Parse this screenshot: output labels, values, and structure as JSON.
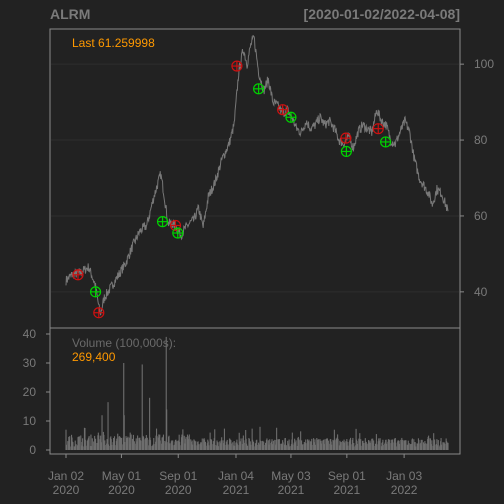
{
  "header": {
    "symbol": "ALRM",
    "date_range": "[2020-01-02/2022-04-08]"
  },
  "price_panel": {
    "last_label": "Last 61.259998"
  },
  "volume_panel": {
    "label": "Volume (100,000s):",
    "value_label": "269,400"
  },
  "colors": {
    "background": "#222222",
    "frame": "#8a8a8a",
    "grid": "#2e2e2e",
    "price_line": "#787878",
    "volume_bar": "#6e6e6e",
    "accent": "#ff9900",
    "buy_marker": "#00d200",
    "sell_marker": "#cc1111"
  },
  "chart_data": [
    {
      "type": "line",
      "title": "ALRM",
      "subtitle": "[2020-01-02/2022-04-08]",
      "ylim": [
        31,
        109
      ],
      "y_ticks": [
        40,
        60,
        80,
        100
      ],
      "x_tick_labels": [
        {
          "date": "2020-01-02",
          "label": [
            "Jan 02",
            "2020"
          ]
        },
        {
          "date": "2020-05-01",
          "label": [
            "May 01",
            "2020"
          ]
        },
        {
          "date": "2020-09-01",
          "label": [
            "Sep 01",
            "2020"
          ]
        },
        {
          "date": "2021-01-04",
          "label": [
            "Jan 04",
            "2021"
          ]
        },
        {
          "date": "2021-05-03",
          "label": [
            "May 03",
            "2021"
          ]
        },
        {
          "date": "2021-09-01",
          "label": [
            "Sep 01",
            "2021"
          ]
        },
        {
          "date": "2022-01-03",
          "label": [
            "Jan 03",
            "2022"
          ]
        }
      ],
      "grid": true,
      "series": [
        {
          "points": [
            [
              "2020-01-02",
              43.0
            ],
            [
              "2020-01-15",
              44.5
            ],
            [
              "2020-02-01",
              45.0
            ],
            [
              "2020-02-20",
              46.5
            ],
            [
              "2020-03-05",
              42.0
            ],
            [
              "2020-03-16",
              34.0
            ],
            [
              "2020-03-25",
              38.5
            ],
            [
              "2020-04-10",
              41.5
            ],
            [
              "2020-04-25",
              44.5
            ],
            [
              "2020-05-10",
              47.5
            ],
            [
              "2020-05-25",
              52.0
            ],
            [
              "2020-06-10",
              56.0
            ],
            [
              "2020-06-25",
              57.5
            ],
            [
              "2020-07-10",
              65.0
            ],
            [
              "2020-07-25",
              71.0
            ],
            [
              "2020-08-01",
              66.0
            ],
            [
              "2020-08-10",
              58.0
            ],
            [
              "2020-08-20",
              58.0
            ],
            [
              "2020-08-28",
              57.0
            ],
            [
              "2020-09-07",
              55.0
            ],
            [
              "2020-09-15",
              56.5
            ],
            [
              "2020-09-25",
              58.0
            ],
            [
              "2020-10-05",
              59.0
            ],
            [
              "2020-10-15",
              62.0
            ],
            [
              "2020-10-25",
              57.0
            ],
            [
              "2020-11-05",
              65.0
            ],
            [
              "2020-11-20",
              69.0
            ],
            [
              "2020-12-05",
              75.0
            ],
            [
              "2020-12-20",
              79.0
            ],
            [
              "2020-12-31",
              84.0
            ],
            [
              "2021-01-10",
              98.0
            ],
            [
              "2021-01-20",
              104.0
            ],
            [
              "2021-01-28",
              100.0
            ],
            [
              "2021-02-05",
              105.0
            ],
            [
              "2021-02-12",
              107.0
            ],
            [
              "2021-02-22",
              98.0
            ],
            [
              "2021-03-05",
              93.0
            ],
            [
              "2021-03-15",
              96.0
            ],
            [
              "2021-03-25",
              90.0
            ],
            [
              "2021-04-05",
              89.0
            ],
            [
              "2021-04-15",
              87.0
            ],
            [
              "2021-04-25",
              88.0
            ],
            [
              "2021-05-05",
              86.0
            ],
            [
              "2021-05-15",
              83.0
            ],
            [
              "2021-05-25",
              82.0
            ],
            [
              "2021-06-05",
              85.0
            ],
            [
              "2021-06-15",
              83.0
            ],
            [
              "2021-06-25",
              84.0
            ],
            [
              "2021-07-05",
              86.0
            ],
            [
              "2021-07-15",
              84.0
            ],
            [
              "2021-07-25",
              85.0
            ],
            [
              "2021-08-05",
              83.0
            ],
            [
              "2021-08-15",
              80.0
            ],
            [
              "2021-08-25",
              79.0
            ],
            [
              "2021-09-05",
              81.0
            ],
            [
              "2021-09-15",
              78.0
            ],
            [
              "2021-09-25",
              82.0
            ],
            [
              "2021-10-05",
              84.0
            ],
            [
              "2021-10-15",
              83.0
            ],
            [
              "2021-10-25",
              82.0
            ],
            [
              "2021-11-05",
              88.0
            ],
            [
              "2021-11-15",
              85.0
            ],
            [
              "2021-11-25",
              84.0
            ],
            [
              "2021-12-05",
              80.0
            ],
            [
              "2021-12-15",
              79.0
            ],
            [
              "2021-12-25",
              82.0
            ],
            [
              "2022-01-05",
              85.0
            ],
            [
              "2022-01-15",
              82.0
            ],
            [
              "2022-01-25",
              75.0
            ],
            [
              "2022-02-05",
              70.0
            ],
            [
              "2022-02-15",
              68.0
            ],
            [
              "2022-02-25",
              66.0
            ],
            [
              "2022-03-05",
              63.0
            ],
            [
              "2022-03-15",
              67.0
            ],
            [
              "2022-03-25",
              66.0
            ],
            [
              "2022-04-08",
              61.26
            ]
          ]
        }
      ],
      "markers": [
        {
          "kind": "sell",
          "date": "2020-01-28",
          "value": 44.5
        },
        {
          "kind": "buy",
          "date": "2020-03-06",
          "value": 40.0
        },
        {
          "kind": "sell",
          "date": "2020-03-13",
          "value": 34.5
        },
        {
          "kind": "buy",
          "date": "2020-07-29",
          "value": 58.5
        },
        {
          "kind": "sell",
          "date": "2020-08-26",
          "value": 57.5
        },
        {
          "kind": "buy",
          "date": "2020-08-31",
          "value": 55.5
        },
        {
          "kind": "sell",
          "date": "2021-01-06",
          "value": 99.5
        },
        {
          "kind": "buy",
          "date": "2021-02-22",
          "value": 93.5
        },
        {
          "kind": "sell",
          "date": "2021-04-15",
          "value": 88.0
        },
        {
          "kind": "buy",
          "date": "2021-05-03",
          "value": 86.0
        },
        {
          "kind": "sell",
          "date": "2021-08-30",
          "value": 80.5
        },
        {
          "kind": "buy",
          "date": "2021-08-31",
          "value": 77.0
        },
        {
          "kind": "sell",
          "date": "2021-11-08",
          "value": 83.0
        },
        {
          "kind": "buy",
          "date": "2021-11-24",
          "value": 79.5
        }
      ]
    },
    {
      "type": "bar",
      "title": "Volume (100,000s):",
      "ylim": [
        0,
        40
      ],
      "y_ticks": [
        0,
        10,
        20,
        30,
        40
      ],
      "last_value": 269400,
      "spikes": [
        {
          "date": "2020-03-12",
          "value": 6.0
        },
        {
          "date": "2020-03-20",
          "value": 12.0
        },
        {
          "date": "2020-04-02",
          "value": 16.5
        },
        {
          "date": "2020-05-06",
          "value": 30.0
        },
        {
          "date": "2020-05-07",
          "value": 12.0
        },
        {
          "date": "2020-05-20",
          "value": 6.0
        },
        {
          "date": "2020-06-15",
          "value": 29.5
        },
        {
          "date": "2020-07-01",
          "value": 18.0
        },
        {
          "date": "2020-08-06",
          "value": 39.0
        },
        {
          "date": "2020-08-07",
          "value": 14.0
        },
        {
          "date": "2020-11-09",
          "value": 6.0
        },
        {
          "date": "2021-01-20",
          "value": 5.0
        },
        {
          "date": "2021-02-25",
          "value": 8.0
        },
        {
          "date": "2021-05-06",
          "value": 6.0
        },
        {
          "date": "2021-08-05",
          "value": 7.0
        },
        {
          "date": "2021-11-04",
          "value": 5.5
        },
        {
          "date": "2022-02-24",
          "value": 4.5
        }
      ]
    }
  ]
}
